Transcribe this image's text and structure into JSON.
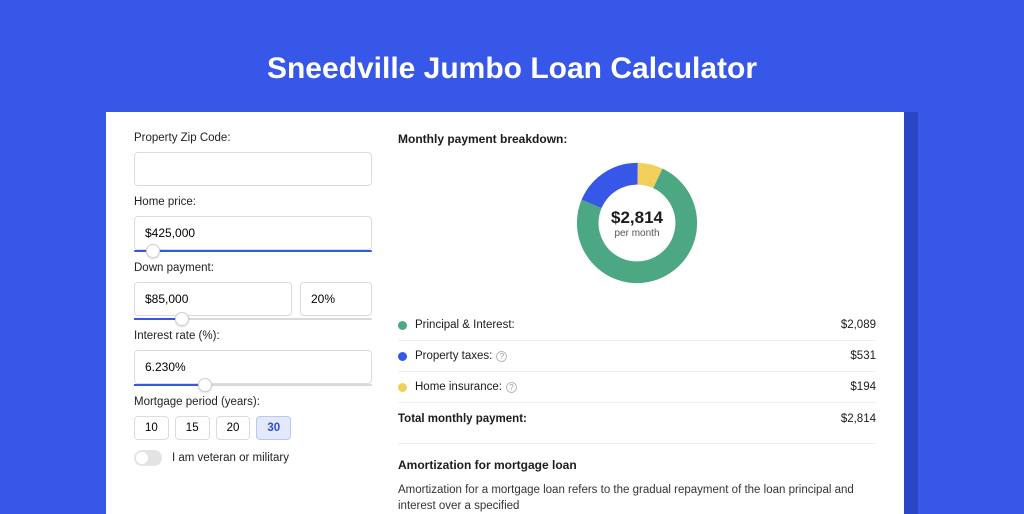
{
  "page": {
    "title": "Sneedville Jumbo Loan Calculator",
    "background_color": "#3657e8",
    "shadow_color": "#2a46c5",
    "card_background": "#ffffff"
  },
  "form": {
    "zip": {
      "label": "Property Zip Code:",
      "value": ""
    },
    "home_price": {
      "label": "Home price:",
      "value": "$425,000",
      "slider_pct": 8
    },
    "down_payment": {
      "label": "Down payment:",
      "amount": "$85,000",
      "percent": "20%",
      "slider_pct": 20
    },
    "interest_rate": {
      "label": "Interest rate (%):",
      "value": "6.230%",
      "slider_pct": 30
    },
    "mortgage_period": {
      "label": "Mortgage period (years):",
      "options": [
        "10",
        "15",
        "20",
        "30"
      ],
      "selected": "30"
    },
    "veteran": {
      "label": "I am veteran or military",
      "checked": false
    }
  },
  "breakdown": {
    "title": "Monthly payment breakdown:",
    "donut": {
      "amount": "$2,814",
      "subtext": "per month",
      "slices": [
        {
          "name": "Principal & Interest",
          "color": "#4ba882",
          "value": 2089
        },
        {
          "name": "Property taxes",
          "color": "#3657e8",
          "value": 531
        },
        {
          "name": "Home insurance",
          "color": "#f2cf5b",
          "value": 194
        }
      ],
      "ring_thickness_pct": 22
    },
    "items": [
      {
        "label": "Principal & Interest:",
        "color": "#4ba882",
        "value": "$2,089",
        "info": false
      },
      {
        "label": "Property taxes:",
        "color": "#3657e8",
        "value": "$531",
        "info": true
      },
      {
        "label": "Home insurance:",
        "color": "#f2cf5b",
        "value": "$194",
        "info": true
      }
    ],
    "total": {
      "label": "Total monthly payment:",
      "value": "$2,814"
    }
  },
  "amortization": {
    "title": "Amortization for mortgage loan",
    "text": "Amortization for a mortgage loan refers to the gradual repayment of the loan principal and interest over a specified"
  }
}
